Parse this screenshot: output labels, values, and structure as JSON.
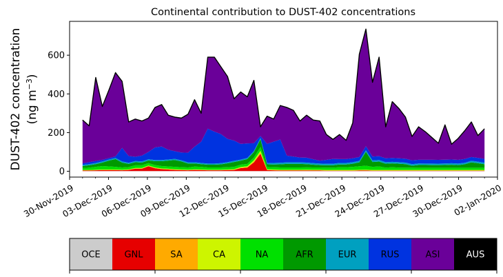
{
  "chart_data": {
    "type": "area",
    "stacked": true,
    "title": "Continental contribution to DUST-402 concentrations",
    "ylabel_line1": "DUST-402 concentration",
    "ylabel_line2_prefix": "(ng m",
    "ylabel_line2_sup": "−3",
    "ylabel_line2_suffix": ")",
    "xlabel": "",
    "x_start": "2019-12-01",
    "x_end": "2020-01-01",
    "xlim": [
      "2019-11-30",
      "2020-01-02"
    ],
    "ylim": [
      -30,
      775
    ],
    "yticks": [
      0,
      200,
      400,
      600
    ],
    "xtick_labels": [
      "30-Nov-2019",
      "03-Dec-2019",
      "06-Dec-2019",
      "09-Dec-2019",
      "12-Dec-2019",
      "15-Dec-2019",
      "18-Dec-2019",
      "21-Dec-2019",
      "24-Dec-2019",
      "27-Dec-2019",
      "30-Dec-2019",
      "02-Jan-2020"
    ],
    "xtick_dates": [
      "2019-11-30",
      "2019-12-03",
      "2019-12-06",
      "2019-12-09",
      "2019-12-12",
      "2019-12-15",
      "2019-12-18",
      "2019-12-21",
      "2019-12-24",
      "2019-12-27",
      "2019-12-30",
      "2020-01-02"
    ],
    "total": [
      265,
      235,
      485,
      335,
      420,
      510,
      465,
      255,
      270,
      260,
      275,
      330,
      345,
      290,
      280,
      275,
      295,
      370,
      300,
      590,
      590,
      540,
      490,
      375,
      410,
      385,
      470,
      230,
      285,
      270,
      340,
      330,
      315,
      260,
      290,
      265,
      260,
      190,
      165,
      190,
      160,
      250,
      605,
      735,
      460,
      590,
      230,
      360,
      325,
      280,
      180,
      230,
      205,
      175,
      145,
      240,
      140,
      170,
      210,
      255,
      185,
      220
    ],
    "series": [
      {
        "name": "OCE",
        "color": "#cccccc",
        "values": [
          1,
          1,
          1,
          1,
          1,
          1,
          1,
          1,
          1,
          1,
          1,
          1,
          1,
          1,
          1,
          1,
          1,
          1,
          1,
          1,
          1,
          1,
          1,
          1,
          1,
          1,
          1,
          1,
          1,
          1,
          1,
          1,
          1,
          1,
          1,
          1,
          1,
          1,
          1,
          1,
          1,
          1,
          1,
          1,
          1,
          1,
          1,
          1,
          1,
          1,
          1,
          1,
          1,
          1,
          1,
          1,
          1,
          1,
          1,
          1,
          1,
          1
        ]
      },
      {
        "name": "GNL",
        "color": "#e60000",
        "values": [
          3,
          3,
          4,
          5,
          5,
          5,
          4,
          6,
          12,
          12,
          25,
          15,
          10,
          8,
          6,
          5,
          4,
          6,
          5,
          4,
          4,
          4,
          5,
          6,
          15,
          18,
          45,
          90,
          5,
          4,
          3,
          3,
          3,
          3,
          3,
          3,
          3,
          2,
          2,
          2,
          2,
          2,
          3,
          3,
          2,
          2,
          2,
          2,
          2,
          2,
          2,
          2,
          2,
          2,
          2,
          2,
          2,
          2,
          2,
          2,
          2,
          2
        ]
      },
      {
        "name": "SA",
        "color": "#ffaa00",
        "values": [
          1,
          1,
          1,
          1,
          1,
          1,
          1,
          1,
          1,
          1,
          1,
          1,
          1,
          1,
          1,
          1,
          1,
          1,
          1,
          1,
          1,
          1,
          1,
          1,
          2,
          3,
          3,
          3,
          1,
          1,
          1,
          1,
          1,
          1,
          1,
          1,
          1,
          1,
          1,
          1,
          1,
          1,
          1,
          1,
          1,
          1,
          1,
          1,
          1,
          1,
          1,
          1,
          1,
          1,
          1,
          1,
          1,
          1,
          1,
          1,
          1,
          1
        ]
      },
      {
        "name": "CA",
        "color": "#cdf500",
        "values": [
          2,
          2,
          2,
          2,
          2,
          2,
          2,
          2,
          3,
          3,
          3,
          3,
          3,
          3,
          3,
          2,
          2,
          2,
          2,
          2,
          2,
          2,
          2,
          3,
          4,
          4,
          8,
          12,
          3,
          3,
          3,
          3,
          3,
          3,
          3,
          3,
          3,
          3,
          3,
          3,
          3,
          3,
          3,
          3,
          3,
          3,
          3,
          3,
          3,
          3,
          3,
          3,
          3,
          3,
          3,
          3,
          3,
          3,
          3,
          3,
          3,
          3
        ]
      },
      {
        "name": "NA",
        "color": "#00e000",
        "values": [
          10,
          12,
          15,
          18,
          16,
          14,
          12,
          12,
          14,
          14,
          12,
          12,
          12,
          12,
          12,
          12,
          12,
          14,
          14,
          12,
          12,
          12,
          12,
          12,
          12,
          12,
          14,
          20,
          12,
          12,
          12,
          12,
          12,
          12,
          12,
          12,
          12,
          12,
          12,
          14,
          14,
          16,
          18,
          20,
          16,
          18,
          12,
          14,
          12,
          12,
          12,
          12,
          12,
          12,
          12,
          12,
          12,
          12,
          12,
          12,
          12,
          12
        ]
      },
      {
        "name": "AFR",
        "color": "#009900",
        "values": [
          10,
          12,
          14,
          18,
          30,
          40,
          25,
          16,
          16,
          14,
          14,
          20,
          25,
          30,
          35,
          30,
          20,
          16,
          14,
          14,
          14,
          16,
          20,
          25,
          20,
          25,
          28,
          40,
          14,
          14,
          16,
          18,
          18,
          18,
          16,
          14,
          12,
          12,
          12,
          14,
          14,
          16,
          20,
          70,
          25,
          25,
          20,
          20,
          20,
          18,
          10,
          14,
          14,
          14,
          14,
          14,
          16,
          14,
          18,
          28,
          24,
          18
        ]
      },
      {
        "name": "EUR",
        "color": "#00a0c0",
        "values": [
          6,
          6,
          6,
          6,
          6,
          6,
          6,
          6,
          6,
          6,
          6,
          6,
          6,
          6,
          6,
          6,
          6,
          6,
          6,
          6,
          6,
          6,
          6,
          6,
          6,
          6,
          6,
          6,
          6,
          8,
          8,
          8,
          8,
          8,
          8,
          8,
          8,
          8,
          8,
          8,
          8,
          8,
          8,
          8,
          8,
          8,
          8,
          8,
          8,
          8,
          8,
          8,
          8,
          8,
          8,
          8,
          8,
          8,
          8,
          8,
          8,
          8
        ]
      },
      {
        "name": "RUS",
        "color": "#0033e0",
        "values": [
          8,
          10,
          10,
          8,
          7,
          8,
          70,
          35,
          22,
          30,
          38,
          65,
          70,
          50,
          40,
          40,
          50,
          80,
          110,
          180,
          165,
          150,
          120,
          105,
          80,
          75,
          40,
          10,
          100,
          110,
          120,
          35,
          30,
          25,
          25,
          20,
          15,
          20,
          25,
          20,
          20,
          20,
          20,
          20,
          20,
          20,
          20,
          20,
          20,
          20,
          20,
          20,
          20,
          20,
          20,
          20,
          20,
          20,
          20,
          20,
          20,
          20
        ]
      },
      {
        "name": "ASI",
        "color": "#6a0099",
        "values": [
          224,
          188,
          432,
          276,
          352,
          433,
          345,
          176,
          195,
          179,
          175,
          207,
          217,
          179,
          176,
          178,
          199,
          241,
          147,
          370,
          385,
          348,
          322,
          216,
          266,
          241,
          325,
          48,
          143,
          117,
          176,
          249,
          239,
          189,
          216,
          203,
          205,
          131,
          101,
          127,
          97,
          183,
          532,
          589,
          384,
          512,
          163,
          291,
          258,
          215,
          123,
          174,
          149,
          119,
          89,
          184,
          82,
          114,
          150,
          185,
          119,
          159
        ]
      },
      {
        "name": "AUS",
        "color": "#000000",
        "values": [
          0,
          0,
          0,
          0,
          0,
          0,
          0,
          0,
          0,
          0,
          0,
          0,
          0,
          0,
          0,
          0,
          0,
          0,
          0,
          0,
          0,
          0,
          0,
          0,
          0,
          0,
          0,
          0,
          0,
          0,
          0,
          0,
          0,
          0,
          0,
          0,
          0,
          0,
          0,
          0,
          0,
          0,
          0,
          0,
          0,
          0,
          0,
          0,
          0,
          0,
          0,
          0,
          0,
          0,
          0,
          0,
          0,
          0,
          0,
          0,
          0,
          0
        ]
      }
    ],
    "legend_placement": "bottom",
    "legend_text_colors": [
      "#000000",
      "#000000",
      "#000000",
      "#000000",
      "#000000",
      "#000000",
      "#000000",
      "#000000",
      "#000000",
      "#ffffff"
    ],
    "grid": false
  }
}
